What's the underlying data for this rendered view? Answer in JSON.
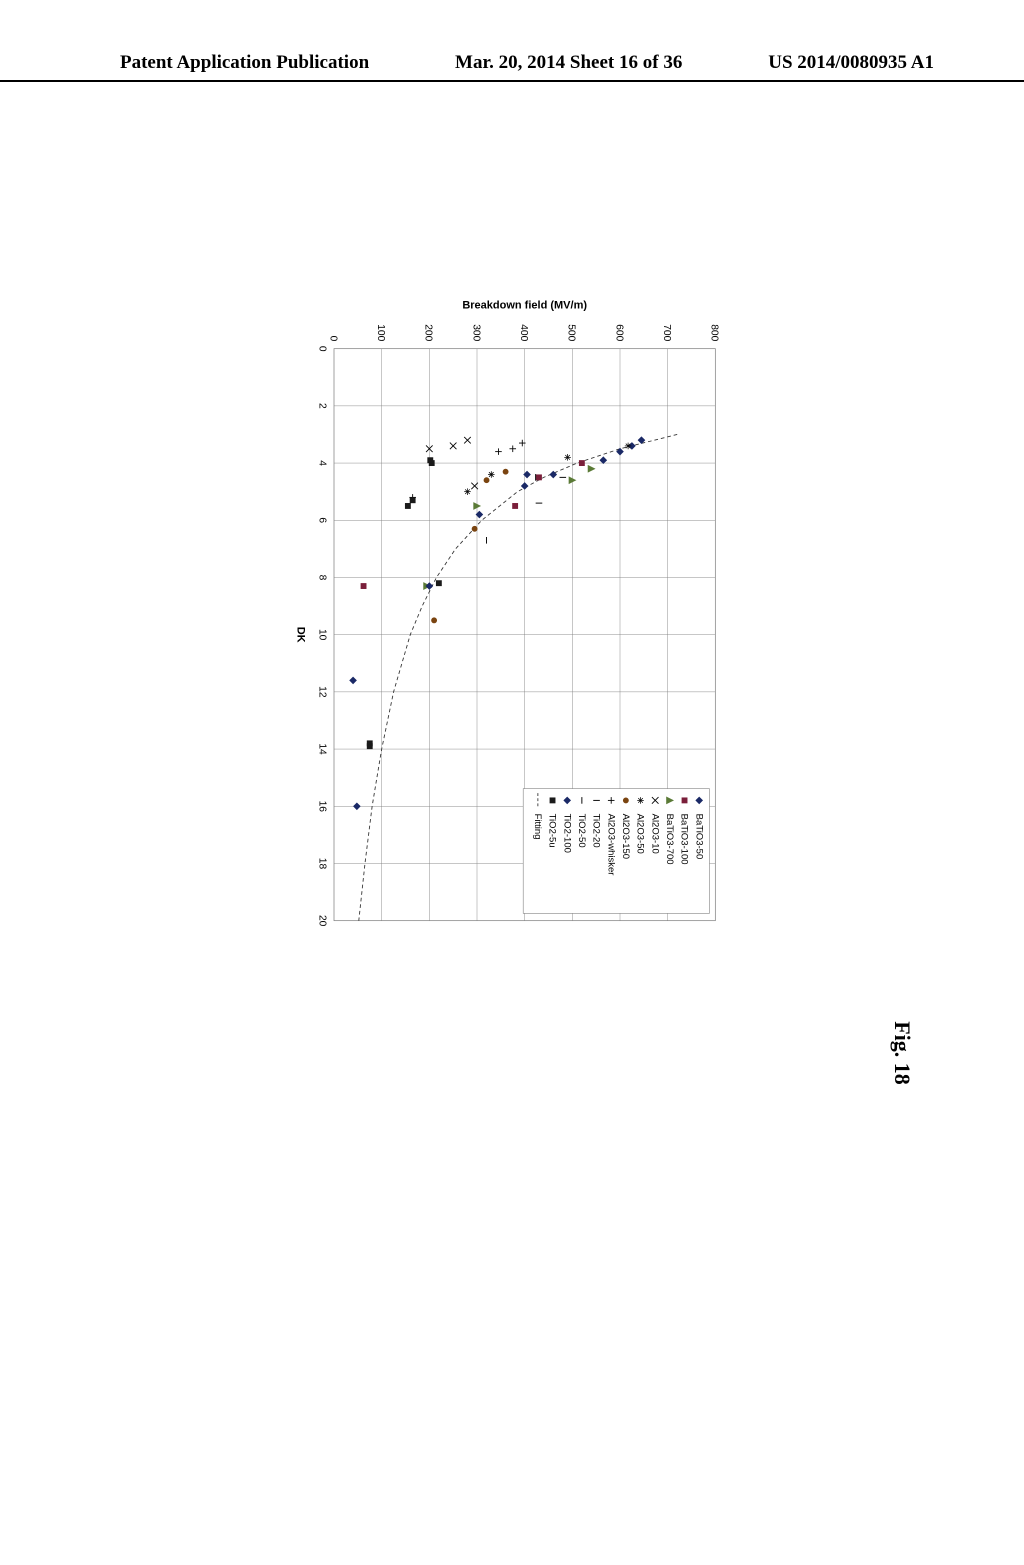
{
  "header": {
    "left": "Patent Application Publication",
    "mid": "Mar. 20, 2014  Sheet 16 of 36",
    "right": "US 2014/0080935 A1"
  },
  "figure_caption": "Fig. 18",
  "chart": {
    "type": "scatter",
    "xlabel": "DK",
    "ylabel": "Breakdown field (MV/m)",
    "xlim": [
      0,
      20
    ],
    "ylim": [
      0,
      800
    ],
    "xtick_step": 2,
    "ytick_step": 100,
    "background_color": "#ffffff",
    "grid_color": "#808080",
    "border_color": "#808080",
    "label_fontsize": 15,
    "tick_fontsize": 14,
    "series": [
      {
        "name": "BaTiO3-50",
        "marker": "diamond-filled",
        "color": "#1a2966",
        "points": [
          [
            3.2,
            645
          ],
          [
            3.4,
            625
          ],
          [
            3.6,
            600
          ],
          [
            3.9,
            565
          ],
          [
            4.4,
            460
          ],
          [
            4.8,
            400
          ]
        ]
      },
      {
        "name": "BaTiO3-100",
        "marker": "square-filled",
        "color": "#7a1f3a",
        "points": [
          [
            4.0,
            520
          ],
          [
            4.5,
            430
          ],
          [
            5.5,
            380
          ],
          [
            8.3,
            62
          ]
        ]
      },
      {
        "name": "BaTiO3-700",
        "marker": "triangle-filled",
        "color": "#5a7a36",
        "points": [
          [
            4.2,
            540
          ],
          [
            4.6,
            500
          ],
          [
            5.5,
            300
          ],
          [
            8.3,
            195
          ]
        ]
      },
      {
        "name": "Al2O3-10",
        "marker": "x",
        "color": "#000000",
        "points": [
          [
            3.2,
            280
          ],
          [
            3.4,
            250
          ],
          [
            3.5,
            200
          ],
          [
            4.8,
            295
          ]
        ]
      },
      {
        "name": "Al2O3-50",
        "marker": "asterisk",
        "color": "#000000",
        "points": [
          [
            3.4,
            617
          ],
          [
            3.8,
            490
          ],
          [
            4.4,
            330
          ],
          [
            5.0,
            280
          ]
        ]
      },
      {
        "name": "Al2O3-150",
        "marker": "circle-filled",
        "color": "#7a4410",
        "points": [
          [
            4.3,
            360
          ],
          [
            4.6,
            320
          ],
          [
            6.3,
            295
          ],
          [
            9.5,
            210
          ]
        ]
      },
      {
        "name": "Al2O3-whisker",
        "marker": "plus",
        "color": "#000000",
        "points": [
          [
            3.3,
            395
          ],
          [
            3.5,
            375
          ],
          [
            3.6,
            345
          ],
          [
            5.2,
            165
          ]
        ]
      },
      {
        "name": "TiO2-20",
        "marker": "tick-short",
        "color": "#000000",
        "points": [
          [
            4.5,
            480
          ],
          [
            5.4,
            430
          ]
        ]
      },
      {
        "name": "TiO2-50",
        "marker": "dash",
        "color": "#000000",
        "points": [
          [
            4.5,
            423
          ],
          [
            6.7,
            320
          ]
        ]
      },
      {
        "name": "TiO2-100",
        "marker": "diamond-filled",
        "color": "#1a2966",
        "points": [
          [
            4.4,
            405
          ],
          [
            5.8,
            305
          ],
          [
            8.3,
            200
          ],
          [
            11.6,
            40
          ],
          [
            16.0,
            48
          ]
        ]
      },
      {
        "name": "TiO2-5u",
        "marker": "square-filled",
        "color": "#1a1a1a",
        "points": [
          [
            3.9,
            202
          ],
          [
            4.0,
            205
          ],
          [
            5.3,
            165
          ],
          [
            5.5,
            155
          ],
          [
            8.2,
            220
          ],
          [
            13.8,
            75
          ],
          [
            13.9,
            75
          ]
        ]
      },
      {
        "name": "Fitting",
        "marker": "fit-line",
        "color": "#333333",
        "points": []
      }
    ],
    "fit_curve": [
      [
        3.0,
        720
      ],
      [
        3.5,
        600
      ],
      [
        4.0,
        510
      ],
      [
        4.5,
        440
      ],
      [
        5.0,
        385
      ],
      [
        6.0,
        310
      ],
      [
        7.0,
        255
      ],
      [
        8.0,
        215
      ],
      [
        9.0,
        185
      ],
      [
        10.0,
        160
      ],
      [
        12.0,
        125
      ],
      [
        14.0,
        100
      ],
      [
        16.0,
        80
      ],
      [
        18.0,
        65
      ],
      [
        20.0,
        52
      ]
    ],
    "legend": {
      "position": "upper-right",
      "fontsize": 13,
      "box_color": "#808080"
    }
  }
}
